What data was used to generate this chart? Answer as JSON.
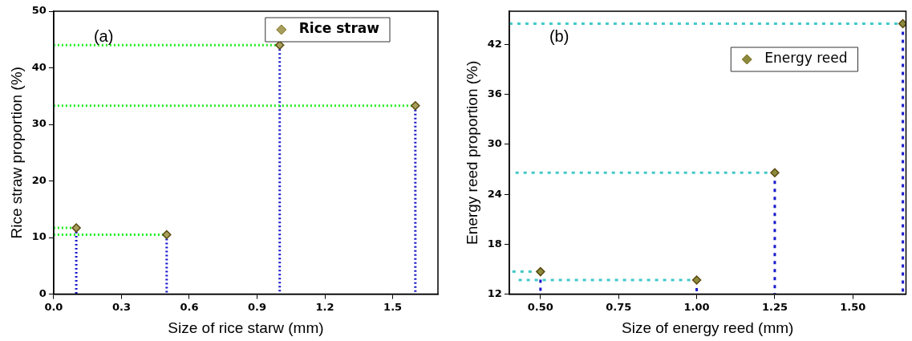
{
  "chart_data": [
    {
      "type": "scatter",
      "xlabel": "Size of rice starw (mm)",
      "ylabel": "Rice straw proportion (%)",
      "annotations": [
        "(a)"
      ],
      "legend": "top right",
      "marker": "diamond",
      "grid": false,
      "xlim": [
        0,
        1.7
      ],
      "xticks": [
        {
          "value": 0,
          "label": "0.0"
        },
        0.3,
        0.6,
        0.9,
        1.2,
        1.5
      ],
      "ylim": [
        0,
        50
      ],
      "yticks": [
        0,
        10,
        20,
        30,
        40,
        50
      ],
      "series": [
        {
          "name": "Rice straw",
          "type": "scatter",
          "color": "#a89f5c",
          "x": [
            0.1,
            0.5,
            1.0,
            1.6
          ],
          "values": [
            11.7,
            10.5,
            44,
            33.3
          ]
        },
        {
          "type": "line",
          "marker": "none",
          "line_style": "dotted",
          "color": "#22ee22",
          "x": [
            0,
            0.1
          ],
          "values": [
            11.7,
            11.7
          ]
        },
        {
          "type": "line",
          "marker": "none",
          "line_style": "dotted",
          "color": "#22ee22",
          "x": [
            0,
            0.5
          ],
          "values": [
            10.5,
            10.5
          ]
        },
        {
          "type": "line",
          "marker": "none",
          "line_style": "dotted",
          "color": "#22ee22",
          "x": [
            0,
            1.0
          ],
          "values": [
            44,
            44
          ]
        },
        {
          "type": "line",
          "marker": "none",
          "line_style": "dotted",
          "color": "#22ee22",
          "x": [
            0,
            1.6
          ],
          "values": [
            33.3,
            33.3
          ]
        },
        {
          "type": "line",
          "marker": "none",
          "line_style": "dotted",
          "color": "#1a1acc",
          "x": [
            0.1,
            0.1
          ],
          "values": [
            11.7,
            0
          ]
        },
        {
          "type": "line",
          "marker": "none",
          "line_style": "dotted",
          "color": "#1a1acc",
          "x": [
            0.5,
            0.5
          ],
          "values": [
            10.5,
            0
          ]
        },
        {
          "type": "line",
          "marker": "none",
          "line_style": "dotted",
          "color": "#1a1acc",
          "x": [
            1.0,
            1.0
          ],
          "values": [
            44,
            0
          ]
        },
        {
          "type": "line",
          "marker": "none",
          "line_style": "dotted",
          "color": "#1a1acc",
          "x": [
            1.6,
            1.6
          ],
          "values": [
            33.3,
            0
          ]
        }
      ]
    },
    {
      "type": "scatter",
      "xlabel": "Size of energy reed (mm)",
      "ylabel": "Energy reed proportion (%)",
      "annotations": [
        "(b)"
      ],
      "legend": "top right",
      "marker": "diamond",
      "grid": false,
      "xlim": [
        0.4,
        1.67
      ],
      "xticks": [
        {
          "value": 0.5,
          "label": "0.50"
        },
        0.75,
        {
          "value": 1,
          "label": "1.00"
        },
        1.25,
        {
          "value": 1.5,
          "label": "1.50"
        }
      ],
      "ylim": [
        12,
        46
      ],
      "yticks": [
        12,
        18,
        24,
        30,
        36,
        42
      ],
      "series": [
        {
          "name": "Energy reed",
          "type": "scatter",
          "color": "#8c8a3c",
          "x": [
            0.5,
            1.0,
            1.25,
            1.66
          ],
          "values": [
            14.7,
            13.7,
            26.6,
            44.5
          ]
        },
        {
          "type": "line",
          "marker": "none",
          "line_style": "dashed",
          "color": "#44c8c8",
          "x": [
            0.41,
            0.5
          ],
          "values": [
            14.7,
            14.7
          ]
        },
        {
          "type": "line",
          "marker": "none",
          "line_style": "dashed",
          "color": "#44c8c8",
          "x": [
            0.43,
            1.0
          ],
          "values": [
            13.7,
            13.7
          ]
        },
        {
          "type": "line",
          "marker": "none",
          "line_style": "dashed",
          "color": "#44c8c8",
          "x": [
            0.42,
            1.25
          ],
          "values": [
            26.6,
            26.6
          ]
        },
        {
          "type": "line",
          "marker": "none",
          "line_style": "dashed",
          "color": "#44c8c8",
          "x": [
            0.4,
            1.66
          ],
          "values": [
            44.5,
            44.5
          ]
        },
        {
          "type": "line",
          "marker": "none",
          "line_style": "dashed",
          "color": "#1a1acc",
          "x": [
            0.5,
            0.5
          ],
          "values": [
            14.7,
            12
          ]
        },
        {
          "type": "line",
          "marker": "none",
          "line_style": "dashed",
          "color": "#1a1acc",
          "x": [
            1.0,
            1.0
          ],
          "values": [
            13.7,
            12
          ]
        },
        {
          "type": "line",
          "marker": "none",
          "line_style": "dashed",
          "color": "#1a1acc",
          "x": [
            1.25,
            1.25
          ],
          "values": [
            26.6,
            12
          ]
        },
        {
          "type": "line",
          "marker": "none",
          "line_style": "dashed",
          "color": "#1a1acc",
          "x": [
            1.66,
            1.66
          ],
          "values": [
            44.5,
            12
          ]
        }
      ]
    }
  ]
}
